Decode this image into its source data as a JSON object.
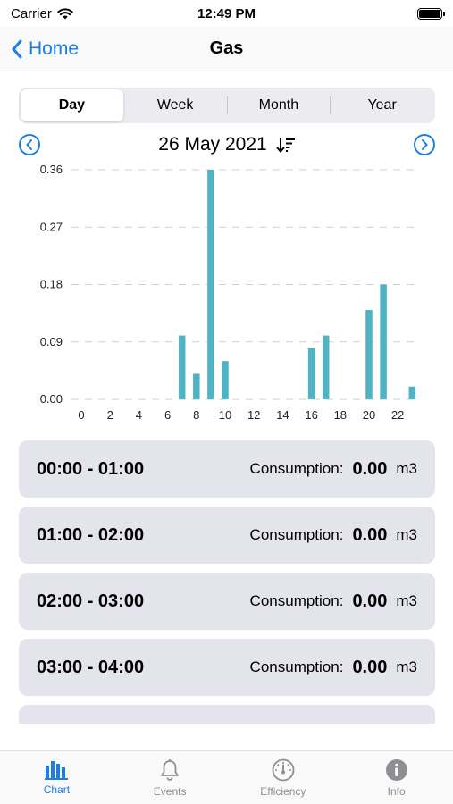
{
  "status": {
    "carrier": "Carrier",
    "time": "12:49 PM"
  },
  "nav": {
    "back_label": "Home",
    "title": "Gas"
  },
  "segments": [
    "Day",
    "Week",
    "Month",
    "Year"
  ],
  "date": {
    "label": "26 May 2021"
  },
  "chart_data": {
    "type": "bar",
    "x": [
      0,
      1,
      2,
      3,
      4,
      5,
      6,
      7,
      8,
      9,
      10,
      11,
      12,
      13,
      14,
      15,
      16,
      17,
      18,
      19,
      20,
      21,
      22,
      23
    ],
    "values": [
      0,
      0,
      0,
      0,
      0,
      0,
      0,
      0.1,
      0.04,
      0.36,
      0.06,
      0,
      0,
      0,
      0,
      0,
      0.08,
      0.1,
      0,
      0,
      0.14,
      0.18,
      0,
      0.02
    ],
    "x_ticks": [
      "0",
      "2",
      "4",
      "6",
      "8",
      "10",
      "12",
      "14",
      "16",
      "18",
      "20",
      "22"
    ],
    "y_ticks": [
      "0.00",
      "0.09",
      "0.18",
      "0.27",
      "0.36"
    ],
    "ylim": [
      0,
      0.36
    ],
    "grid": true,
    "color": "#4fb3c3"
  },
  "rows": [
    {
      "range": "00:00 - 01:00",
      "label": "Consumption:",
      "value": "0.00",
      "unit": "m3"
    },
    {
      "range": "01:00 - 02:00",
      "label": "Consumption:",
      "value": "0.00",
      "unit": "m3"
    },
    {
      "range": "02:00 - 03:00",
      "label": "Consumption:",
      "value": "0.00",
      "unit": "m3"
    },
    {
      "range": "03:00 - 04:00",
      "label": "Consumption:",
      "value": "0.00",
      "unit": "m3"
    }
  ],
  "tabs": [
    {
      "label": "Chart",
      "icon": "bar-chart-icon"
    },
    {
      "label": "Events",
      "icon": "bell-icon"
    },
    {
      "label": "Efficiency",
      "icon": "gauge-icon"
    },
    {
      "label": "Info",
      "icon": "info-icon"
    }
  ],
  "colors": {
    "accent": "#1a7fe3",
    "bar": "#4fb3c3",
    "row_bg": "#e4e4ec"
  }
}
